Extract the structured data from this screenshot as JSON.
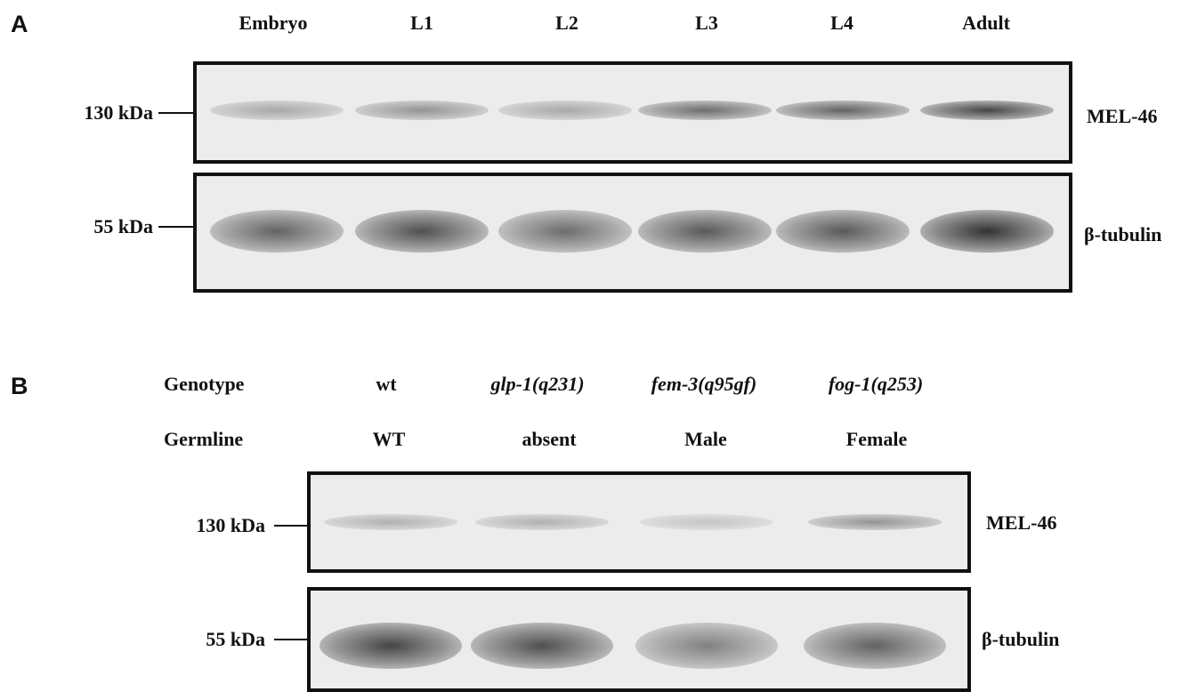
{
  "panel_a": {
    "letter": "A",
    "lanes": [
      "Embryo",
      "L1",
      "L2",
      "L3",
      "L4",
      "Adult"
    ],
    "blots": [
      {
        "marker": "130 kDa",
        "protein": "MEL-46",
        "band_intensity": [
          0.35,
          0.45,
          0.35,
          0.65,
          0.7,
          0.85
        ]
      },
      {
        "marker": "55 kDa",
        "protein": "β-tubulin",
        "band_intensity": [
          0.7,
          0.8,
          0.65,
          0.75,
          0.75,
          0.95
        ]
      }
    ]
  },
  "panel_b": {
    "letter": "B",
    "rows": [
      {
        "label": "Genotype",
        "italic": false,
        "values": [
          "wt",
          "glp-1(q231)",
          "fem-3(q95gf)",
          "fog-1(q253)"
        ],
        "values_italic": [
          false,
          true,
          true,
          true
        ]
      },
      {
        "label": "Germline",
        "italic": false,
        "values": [
          "WT",
          "absent",
          "Male",
          "Female"
        ],
        "values_italic": [
          false,
          false,
          false,
          false
        ]
      }
    ],
    "blots": [
      {
        "marker": "130 kDa",
        "protein": "MEL-46",
        "band_intensity": [
          0.3,
          0.3,
          0.2,
          0.45
        ]
      },
      {
        "marker": "55 kDa",
        "protein": "β-tubulin",
        "band_intensity": [
          0.85,
          0.8,
          0.55,
          0.7
        ]
      }
    ]
  }
}
